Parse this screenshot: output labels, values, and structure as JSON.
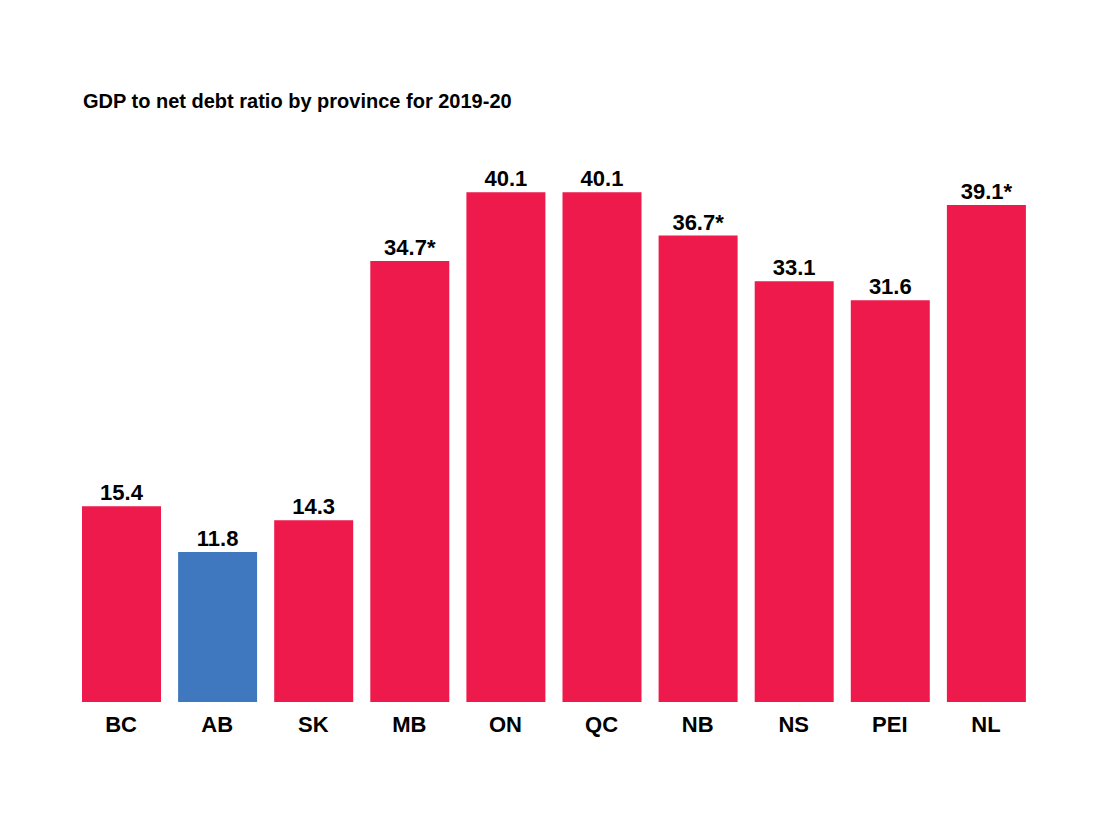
{
  "chart_data": {
    "type": "bar",
    "title": "GDP to net debt ratio by province for 2019-20",
    "categories": [
      "BC",
      "AB",
      "SK",
      "MB",
      "ON",
      "QC",
      "NB",
      "NS",
      "PEI",
      "NL"
    ],
    "values": [
      15.4,
      11.8,
      14.3,
      34.7,
      40.1,
      40.1,
      36.7,
      33.1,
      31.6,
      39.1
    ],
    "value_labels": [
      "15.4",
      "11.8",
      "14.3",
      "34.7*",
      "40.1",
      "40.1",
      "36.7*",
      "33.1",
      "31.6",
      "39.1*"
    ],
    "colors": [
      "#ed1a4b",
      "#3f78be",
      "#ed1a4b",
      "#ed1a4b",
      "#ed1a4b",
      "#ed1a4b",
      "#ed1a4b",
      "#ed1a4b",
      "#ed1a4b",
      "#ed1a4b"
    ],
    "data_labels": true,
    "tick_labels": "x",
    "grid": false,
    "ylim": [
      0,
      45
    ]
  }
}
